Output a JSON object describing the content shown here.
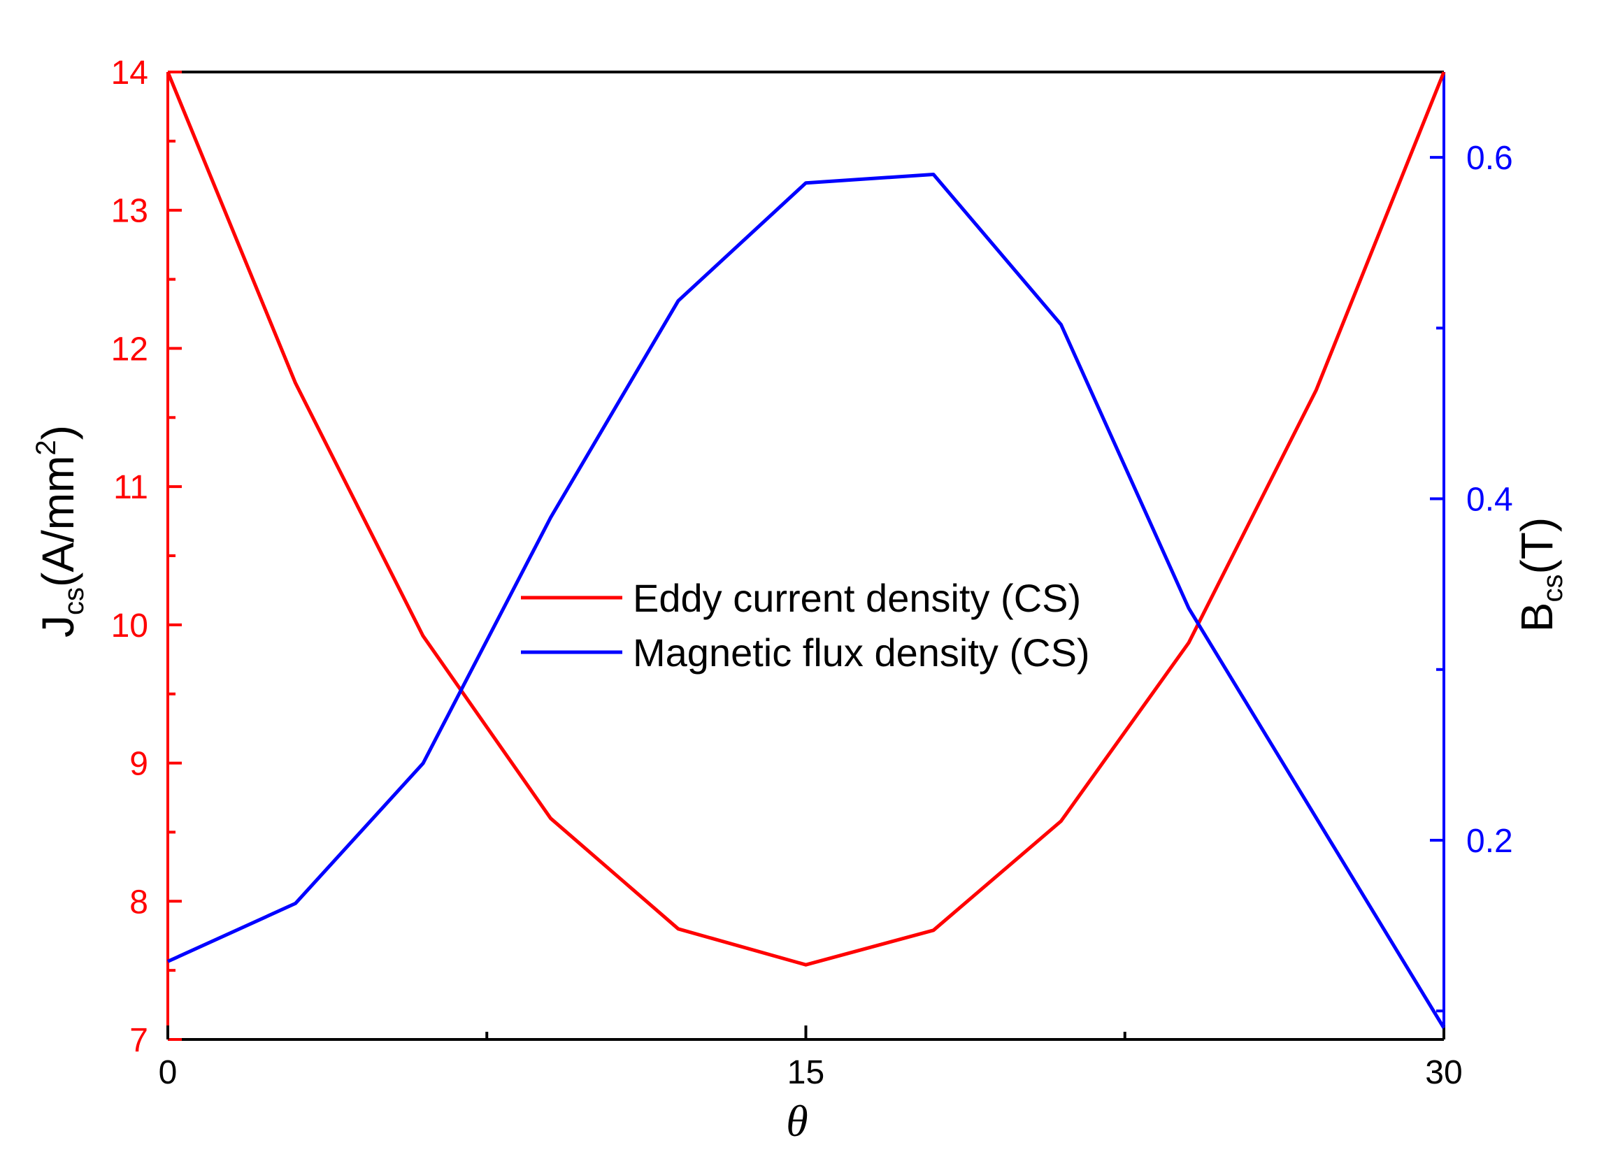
{
  "chart_data": {
    "type": "line",
    "x": [
      0,
      3,
      6,
      9,
      12,
      15,
      18,
      21,
      24,
      27,
      30
    ],
    "series": [
      {
        "name": "Eddy current density (CS)",
        "axis": "left",
        "color": "#ff0000",
        "values": [
          14.0,
          11.75,
          9.92,
          8.6,
          7.8,
          7.54,
          7.79,
          8.58,
          9.87,
          11.7,
          14.0
        ]
      },
      {
        "name": "Magnetic flux density (CS)",
        "axis": "right",
        "color": "#0000ff",
        "values": [
          0.129,
          0.163,
          0.245,
          0.389,
          0.516,
          0.585,
          0.59,
          0.502,
          0.336,
          0.213,
          0.09
        ]
      }
    ],
    "xlabel": "θ",
    "ylabel_left": {
      "main": "J",
      "sub": "cs",
      "rest": "(A/mm",
      "sup": "2",
      "close": ")"
    },
    "ylabel_right": {
      "main": "B",
      "sub": "cs",
      "rest": "(T)"
    },
    "xlim": [
      0,
      30
    ],
    "ylim_left": [
      7,
      14
    ],
    "ylim_right": [
      0.0833,
      0.65
    ],
    "xticks": [
      0,
      15,
      30
    ],
    "xticks_minor": [
      7.5,
      22.5
    ],
    "yticks_left": [
      7,
      8,
      9,
      10,
      11,
      12,
      13,
      14
    ],
    "yticks_right": [
      0.2,
      0.4,
      0.6
    ],
    "yticks_right_minor": [
      0.1,
      0.3,
      0.5
    ],
    "legend_position": "center",
    "left_axis_color": "#ff0000",
    "right_axis_color": "#0000ff"
  }
}
